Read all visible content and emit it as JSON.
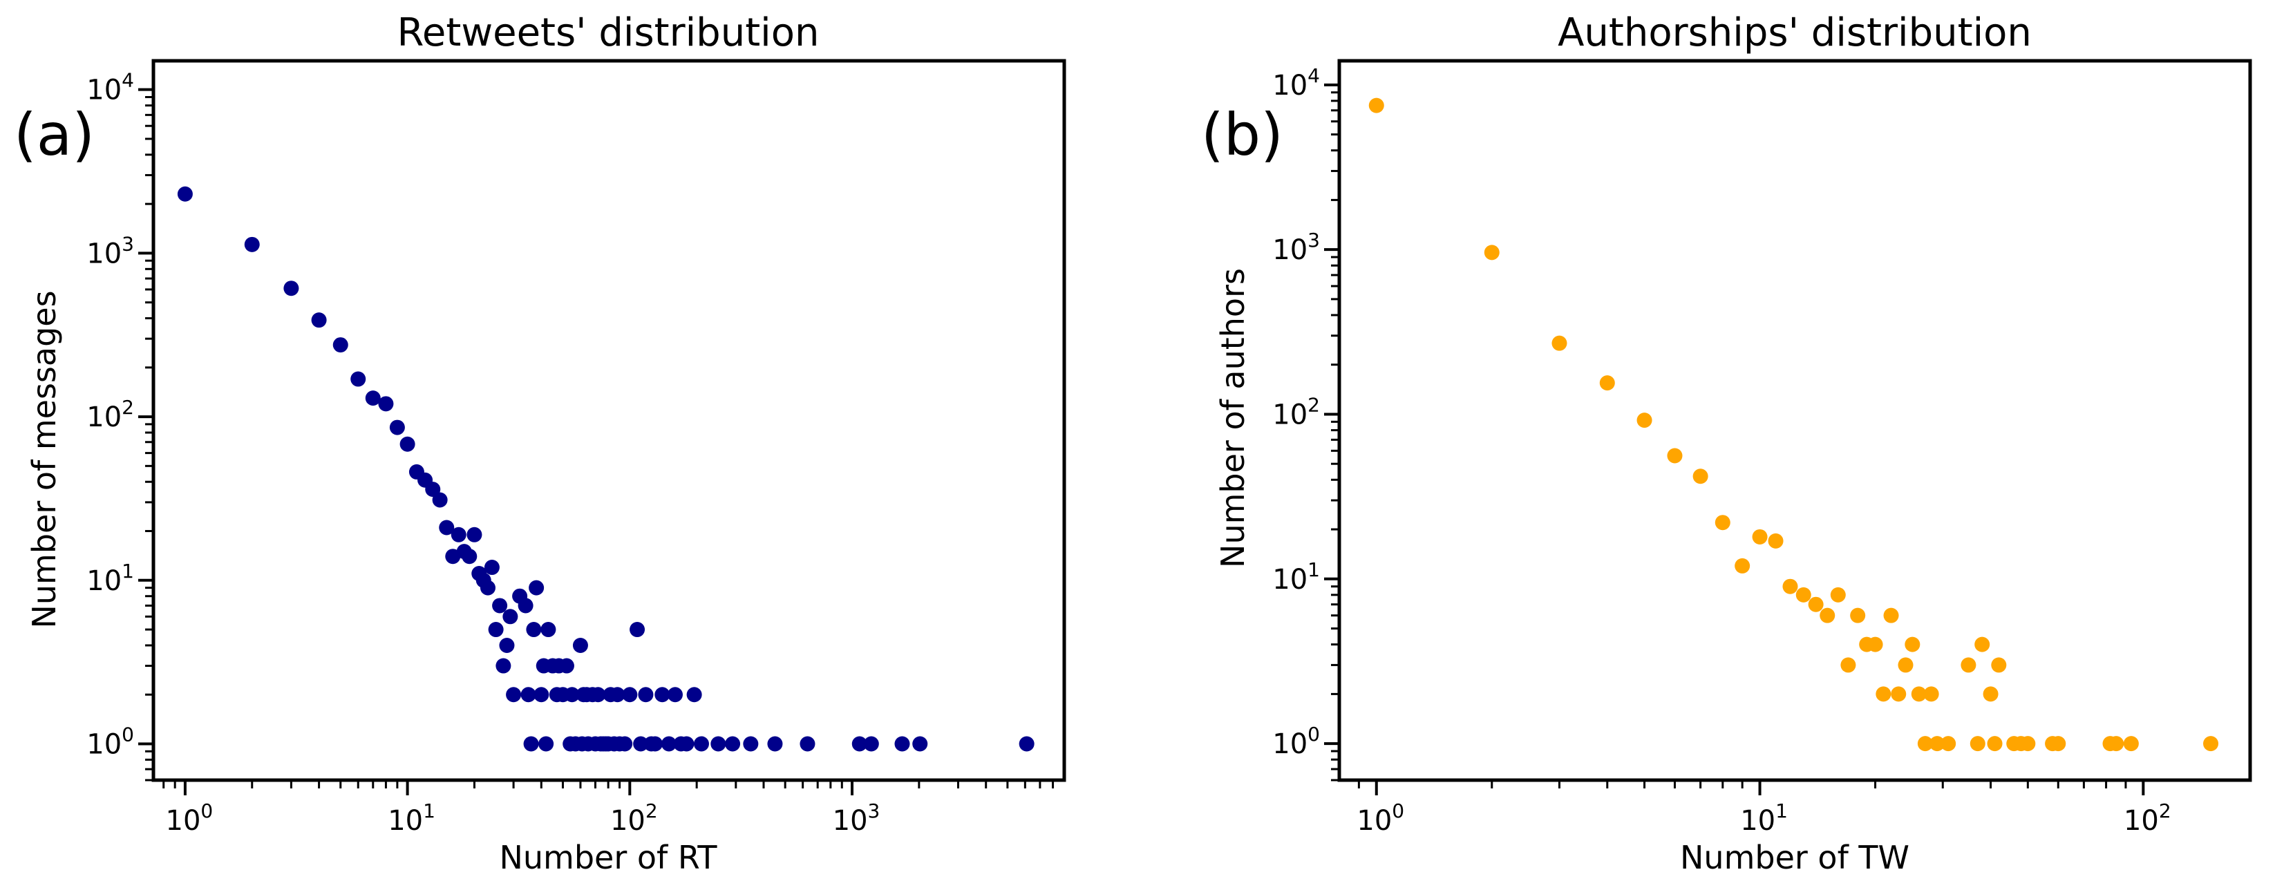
{
  "chart_data": [
    {
      "type": "scatter",
      "panel_label": "(a)",
      "title": "Retweets' distribution",
      "xlabel": "Number of RT",
      "ylabel": "Number of messages",
      "xscale": "log",
      "yscale": "log",
      "xlim": [
        0.72,
        9000
      ],
      "ylim": [
        0.6,
        15000
      ],
      "xticks": [
        1,
        10,
        100,
        1000
      ],
      "yticks": [
        1,
        10,
        100,
        1000,
        10000
      ],
      "color": "#00008b",
      "series": [
        {
          "name": "messages",
          "points": [
            [
              1,
              2300
            ],
            [
              2,
              1130
            ],
            [
              3,
              610
            ],
            [
              4,
              390
            ],
            [
              5,
              275
            ],
            [
              6,
              170
            ],
            [
              7,
              130
            ],
            [
              8,
              120
            ],
            [
              9,
              86
            ],
            [
              10,
              68
            ],
            [
              11,
              46
            ],
            [
              12,
              41
            ],
            [
              13,
              36
            ],
            [
              14,
              31
            ],
            [
              15,
              21
            ],
            [
              16,
              14
            ],
            [
              17,
              19
            ],
            [
              18,
              15
            ],
            [
              19,
              14
            ],
            [
              20,
              19
            ],
            [
              21,
              11
            ],
            [
              22,
              10
            ],
            [
              23,
              9
            ],
            [
              24,
              12
            ],
            [
              25,
              5
            ],
            [
              26,
              7
            ],
            [
              27,
              3
            ],
            [
              28,
              4
            ],
            [
              29,
              6
            ],
            [
              30,
              2
            ],
            [
              32,
              8
            ],
            [
              34,
              7
            ],
            [
              35,
              2
            ],
            [
              36,
              1
            ],
            [
              37,
              5
            ],
            [
              38,
              9
            ],
            [
              40,
              2
            ],
            [
              41,
              3
            ],
            [
              42,
              1
            ],
            [
              43,
              5
            ],
            [
              45,
              3
            ],
            [
              47,
              2
            ],
            [
              48,
              3
            ],
            [
              50,
              2
            ],
            [
              52,
              3
            ],
            [
              54,
              1
            ],
            [
              55,
              2
            ],
            [
              57,
              1
            ],
            [
              60,
              4
            ],
            [
              61,
              1
            ],
            [
              62,
              2
            ],
            [
              64,
              2
            ],
            [
              65,
              1
            ],
            [
              68,
              2
            ],
            [
              70,
              1
            ],
            [
              72,
              2
            ],
            [
              74,
              1
            ],
            [
              76,
              1
            ],
            [
              78,
              1
            ],
            [
              80,
              1
            ],
            [
              82,
              2
            ],
            [
              85,
              1
            ],
            [
              88,
              2
            ],
            [
              90,
              1
            ],
            [
              95,
              1
            ],
            [
              100,
              2
            ],
            [
              108,
              5
            ],
            [
              112,
              1
            ],
            [
              118,
              2
            ],
            [
              125,
              1
            ],
            [
              130,
              1
            ],
            [
              140,
              2
            ],
            [
              150,
              1
            ],
            [
              160,
              2
            ],
            [
              170,
              1
            ],
            [
              180,
              1
            ],
            [
              195,
              2
            ],
            [
              210,
              1
            ],
            [
              250,
              1
            ],
            [
              290,
              1
            ],
            [
              350,
              1
            ],
            [
              450,
              1
            ],
            [
              630,
              1
            ],
            [
              1080,
              1
            ],
            [
              1220,
              1
            ],
            [
              1680,
              1
            ],
            [
              2020,
              1
            ],
            [
              6100,
              1
            ]
          ]
        }
      ]
    },
    {
      "type": "scatter",
      "panel_label": "(b)",
      "title": "Authorships' distribution",
      "xlabel": "Number of TW",
      "ylabel": "Number of authors",
      "xscale": "log",
      "yscale": "log",
      "xlim": [
        0.8,
        190
      ],
      "ylim": [
        0.6,
        14000
      ],
      "xticks": [
        1,
        10,
        100
      ],
      "yticks": [
        1,
        10,
        100,
        1000,
        10000
      ],
      "color": "#ffa500",
      "series": [
        {
          "name": "authors",
          "points": [
            [
              1,
              7500
            ],
            [
              2,
              960
            ],
            [
              3,
              270
            ],
            [
              4,
              155
            ],
            [
              5,
              92
            ],
            [
              6,
              56
            ],
            [
              7,
              42
            ],
            [
              8,
              22
            ],
            [
              9,
              12
            ],
            [
              10,
              18
            ],
            [
              11,
              17
            ],
            [
              12,
              9
            ],
            [
              13,
              8
            ],
            [
              14,
              7
            ],
            [
              15,
              6
            ],
            [
              16,
              8
            ],
            [
              17,
              3
            ],
            [
              18,
              6
            ],
            [
              19,
              4
            ],
            [
              20,
              4
            ],
            [
              21,
              2
            ],
            [
              22,
              6
            ],
            [
              23,
              2
            ],
            [
              24,
              3
            ],
            [
              25,
              4
            ],
            [
              26,
              2
            ],
            [
              27,
              1
            ],
            [
              28,
              2
            ],
            [
              29,
              1
            ],
            [
              31,
              1
            ],
            [
              35,
              3
            ],
            [
              37,
              1
            ],
            [
              38,
              4
            ],
            [
              40,
              2
            ],
            [
              41,
              1
            ],
            [
              42,
              3
            ],
            [
              46,
              1
            ],
            [
              48,
              1
            ],
            [
              50,
              1
            ],
            [
              58,
              1
            ],
            [
              60,
              1
            ],
            [
              82,
              1
            ],
            [
              85,
              1
            ],
            [
              93,
              1
            ],
            [
              150,
              1
            ]
          ]
        }
      ]
    }
  ]
}
